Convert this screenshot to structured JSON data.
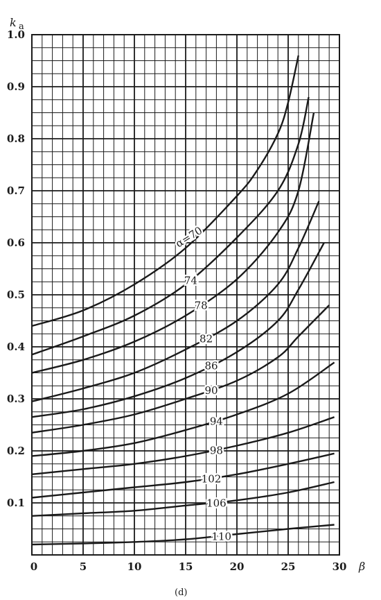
{
  "chart_data": {
    "type": "line",
    "caption": "(d)",
    "xlabel": "β",
    "ylabel": "k",
    "ylabel_sub": "a",
    "xlim": [
      0,
      30
    ],
    "ylim": [
      0,
      1.0
    ],
    "x_ticks": [
      "0",
      "5",
      "10",
      "15",
      "20",
      "25",
      "30"
    ],
    "y_ticks": [
      "0.1",
      "0.2",
      "0.3",
      "0.4",
      "0.5",
      "0.6",
      "0.7",
      "0.8",
      "0.9",
      "1.0"
    ],
    "grid": true,
    "line_color": "#1a1a1a",
    "series": [
      {
        "name": "α=70",
        "x": [
          0,
          5,
          10,
          15,
          20,
          22,
          24,
          25,
          26
        ],
        "y": [
          0.44,
          0.47,
          0.52,
          0.59,
          0.69,
          0.74,
          0.81,
          0.87,
          0.96
        ]
      },
      {
        "name": "74",
        "x": [
          0,
          5,
          10,
          15,
          20,
          24,
          26,
          27
        ],
        "y": [
          0.385,
          0.42,
          0.46,
          0.52,
          0.61,
          0.7,
          0.79,
          0.88
        ]
      },
      {
        "name": "78",
        "x": [
          0,
          5,
          10,
          15,
          20,
          24,
          26,
          27.5
        ],
        "y": [
          0.35,
          0.375,
          0.41,
          0.46,
          0.53,
          0.62,
          0.7,
          0.85
        ]
      },
      {
        "name": "82",
        "x": [
          0,
          5,
          10,
          15,
          20,
          24,
          26,
          28
        ],
        "y": [
          0.295,
          0.32,
          0.35,
          0.395,
          0.45,
          0.52,
          0.59,
          0.68
        ]
      },
      {
        "name": "86",
        "x": [
          0,
          5,
          10,
          15,
          20,
          24,
          26,
          28.5
        ],
        "y": [
          0.265,
          0.28,
          0.305,
          0.34,
          0.39,
          0.45,
          0.51,
          0.6
        ]
      },
      {
        "name": "90",
        "x": [
          0,
          5,
          10,
          15,
          20,
          24,
          26,
          29
        ],
        "y": [
          0.235,
          0.25,
          0.27,
          0.3,
          0.335,
          0.38,
          0.42,
          0.48
        ]
      },
      {
        "name": "94",
        "x": [
          0,
          5,
          10,
          15,
          20,
          25,
          29.5
        ],
        "y": [
          0.19,
          0.2,
          0.215,
          0.24,
          0.27,
          0.31,
          0.37
        ]
      },
      {
        "name": "98",
        "x": [
          0,
          5,
          10,
          15,
          20,
          25,
          29.5
        ],
        "y": [
          0.155,
          0.165,
          0.175,
          0.19,
          0.21,
          0.235,
          0.265
        ]
      },
      {
        "name": "102",
        "x": [
          0,
          5,
          10,
          15,
          20,
          25,
          29.5
        ],
        "y": [
          0.11,
          0.12,
          0.13,
          0.14,
          0.155,
          0.175,
          0.195
        ]
      },
      {
        "name": "106",
        "x": [
          0,
          5,
          10,
          15,
          20,
          25,
          29.5
        ],
        "y": [
          0.075,
          0.08,
          0.085,
          0.095,
          0.105,
          0.12,
          0.14
        ]
      },
      {
        "name": "110",
        "x": [
          0,
          5,
          10,
          15,
          20,
          25,
          29.5
        ],
        "y": [
          0.02,
          0.022,
          0.025,
          0.03,
          0.04,
          0.05,
          0.058
        ]
      }
    ]
  }
}
